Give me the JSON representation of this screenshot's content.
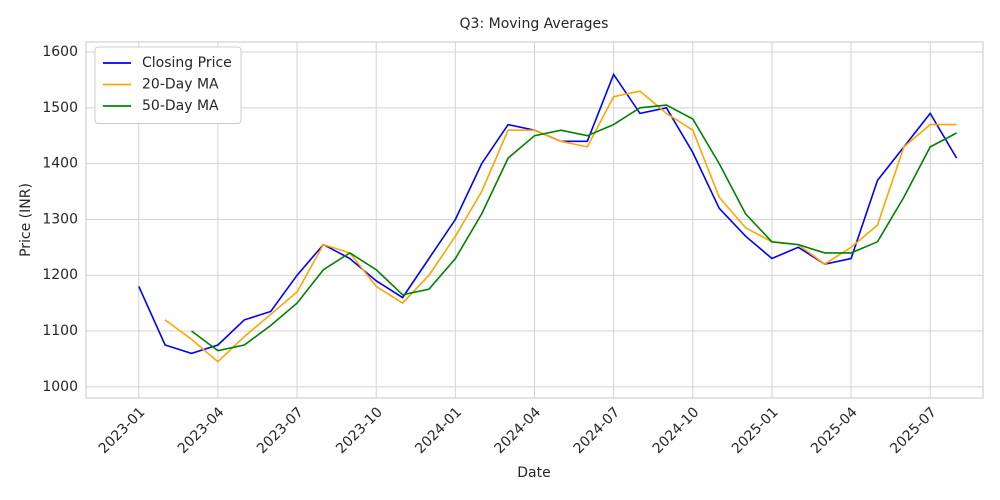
{
  "chart_data": {
    "type": "line",
    "title": "Q3: Moving Averages",
    "x_label": "Date",
    "y_label": "Price (INR)",
    "x": [
      "2023-01",
      "2023-02",
      "2023-03",
      "2023-04",
      "2023-05",
      "2023-06",
      "2023-07",
      "2023-08",
      "2023-09",
      "2023-10",
      "2023-11",
      "2023-12",
      "2024-01",
      "2024-02",
      "2024-03",
      "2024-04",
      "2024-05",
      "2024-06",
      "2024-07",
      "2024-08",
      "2024-09",
      "2024-10",
      "2024-11",
      "2024-12",
      "2025-01",
      "2025-02",
      "2025-03",
      "2025-04",
      "2025-05",
      "2025-06",
      "2025-07",
      "2025-08"
    ],
    "series": [
      {
        "name": "Closing Price",
        "color": "#0000ff",
        "values": [
          1180,
          1075,
          1060,
          1075,
          1120,
          1135,
          1200,
          1255,
          1230,
          1190,
          1160,
          1230,
          1300,
          1400,
          1470,
          1460,
          1440,
          1440,
          1560,
          1490,
          1500,
          1420,
          1320,
          1270,
          1230,
          1250,
          1220,
          1230,
          1370,
          1430,
          1490,
          1410
        ]
      },
      {
        "name": "20-Day MA",
        "color": "#ffa500",
        "values": [
          null,
          1120,
          1085,
          1045,
          1090,
          1130,
          1170,
          1255,
          1240,
          1180,
          1150,
          1200,
          1270,
          1350,
          1460,
          1460,
          1440,
          1430,
          1520,
          1530,
          1490,
          1460,
          1340,
          1285,
          1260,
          1255,
          1220,
          1250,
          1290,
          1430,
          1470,
          1470
        ]
      },
      {
        "name": "50-Day MA",
        "color": "#008000",
        "values": [
          null,
          null,
          1100,
          1065,
          1075,
          1110,
          1150,
          1210,
          1240,
          1210,
          1165,
          1175,
          1230,
          1310,
          1410,
          1450,
          1460,
          1450,
          1470,
          1500,
          1505,
          1480,
          1400,
          1310,
          1260,
          1255,
          1240,
          1240,
          1260,
          1340,
          1430,
          1455
        ]
      }
    ],
    "xlim": [
      "2022-11",
      "2025-09"
    ],
    "xticks": [
      "2023-01",
      "2023-04",
      "2023-07",
      "2023-10",
      "2024-01",
      "2024-04",
      "2024-07",
      "2024-10",
      "2025-01",
      "2025-04",
      "2025-07"
    ],
    "ylim": [
      980,
      1618
    ],
    "yticks": [
      1000,
      1100,
      1200,
      1300,
      1400,
      1500,
      1600
    ],
    "grid": true,
    "legend": "upper left"
  }
}
